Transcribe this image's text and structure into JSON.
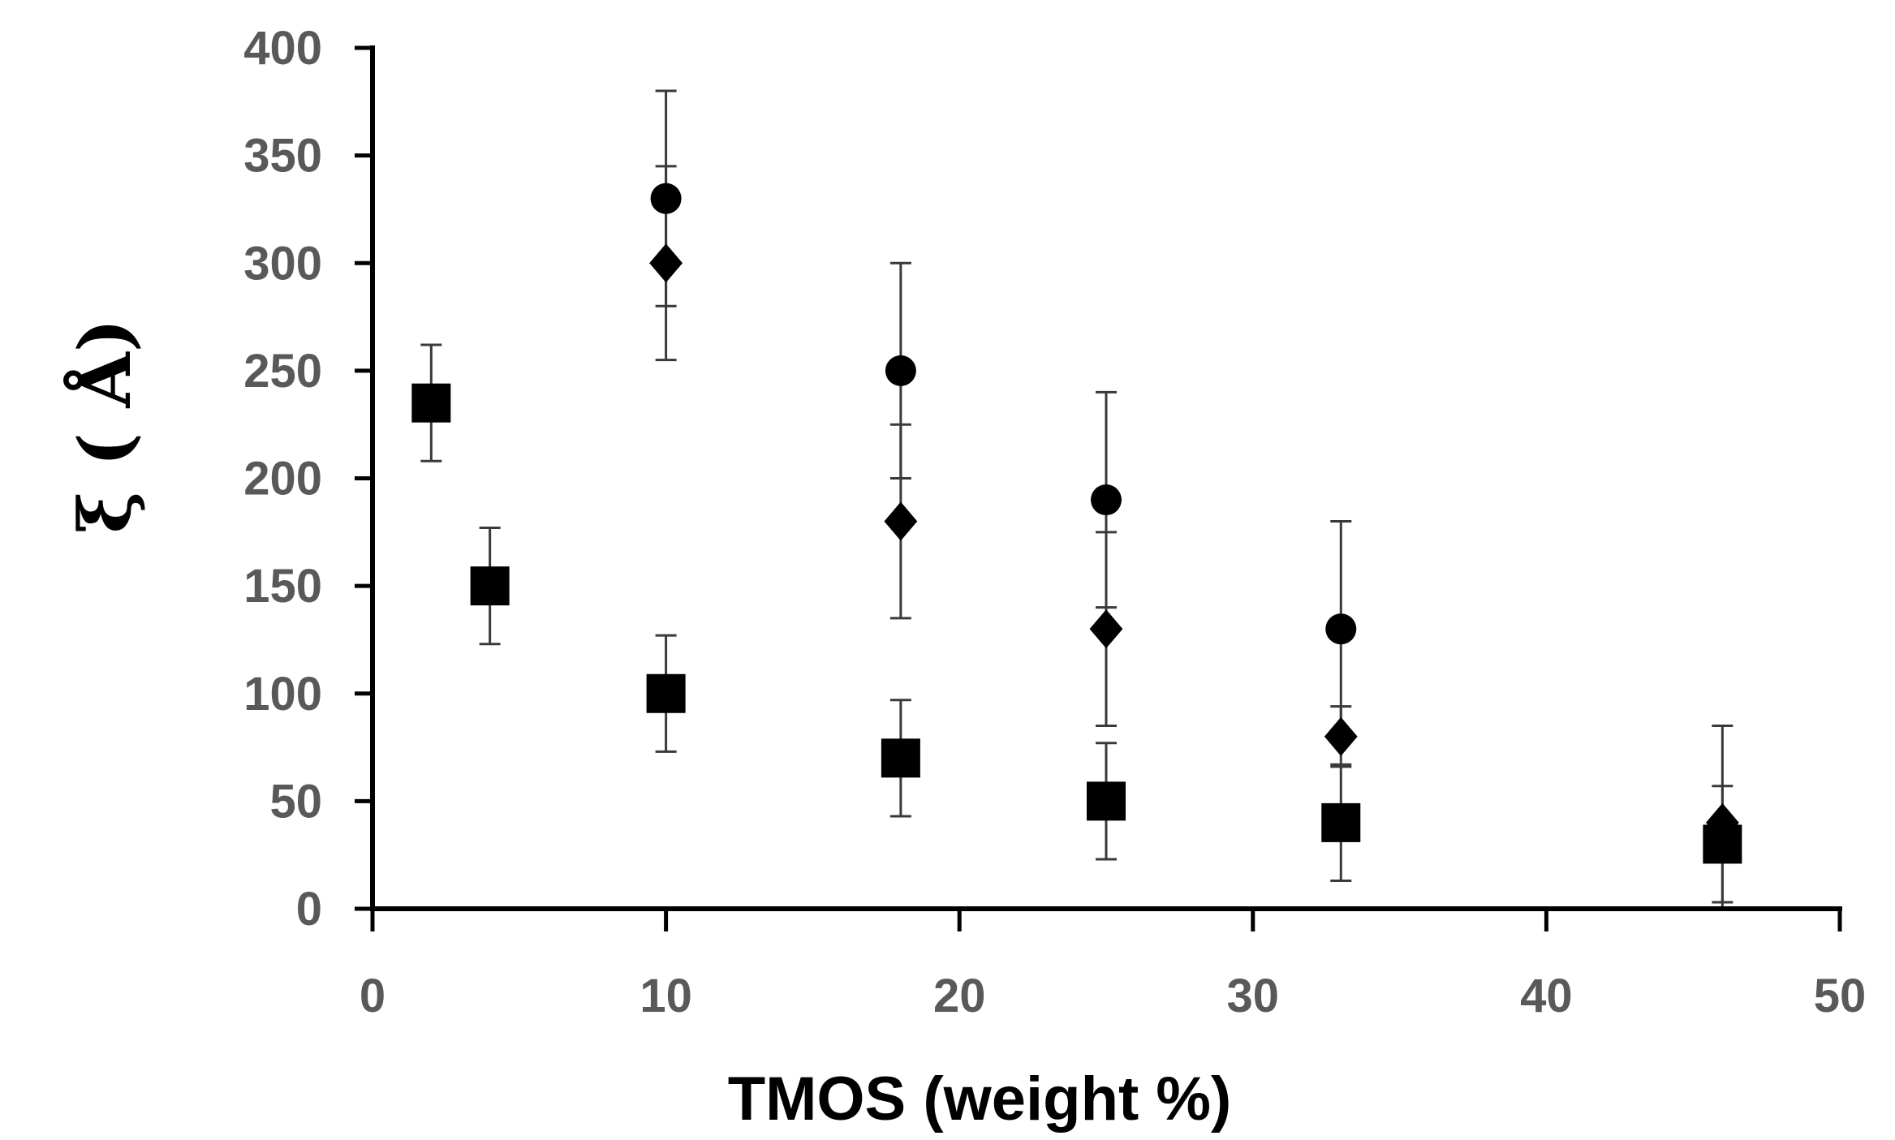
{
  "chart_data": {
    "type": "scatter",
    "title": "",
    "xlabel": "TMOS (weight %)",
    "ylabel": "ξ ( Å)",
    "xlim": [
      0,
      50
    ],
    "ylim": [
      0,
      400
    ],
    "xticks": [
      0,
      10,
      20,
      30,
      40,
      50
    ],
    "yticks": [
      0,
      50,
      100,
      150,
      200,
      250,
      300,
      350,
      400
    ],
    "xtick_labels": [
      "0",
      "10",
      "20",
      "30",
      "40",
      "50"
    ],
    "ytick_labels": [
      "0",
      "50",
      "100",
      "150",
      "200",
      "250",
      "300",
      "350",
      "400"
    ],
    "grid": false,
    "legend": "none",
    "series": [
      {
        "name": "circles",
        "marker": "circle",
        "color": "#000000",
        "points": [
          {
            "x": 10,
            "y": 330,
            "err": 50
          },
          {
            "x": 18,
            "y": 250,
            "err": 50
          },
          {
            "x": 25,
            "y": 190,
            "err": 50
          },
          {
            "x": 33,
            "y": 130,
            "err": 50
          }
        ]
      },
      {
        "name": "diamonds",
        "marker": "diamond",
        "color": "#000000",
        "points": [
          {
            "x": 10,
            "y": 300,
            "err": 45
          },
          {
            "x": 18,
            "y": 180,
            "err": 45
          },
          {
            "x": 25,
            "y": 130,
            "err": 45
          },
          {
            "x": 33,
            "y": 80,
            "err": 14
          },
          {
            "x": 46,
            "y": 40,
            "err": 45
          }
        ]
      },
      {
        "name": "squares",
        "marker": "square",
        "color": "#000000",
        "points": [
          {
            "x": 2,
            "y": 235,
            "err": 27
          },
          {
            "x": 4,
            "y": 150,
            "err": 27
          },
          {
            "x": 10,
            "y": 100,
            "err": 27
          },
          {
            "x": 18,
            "y": 70,
            "err": 27
          },
          {
            "x": 25,
            "y": 50,
            "err": 27
          },
          {
            "x": 33,
            "y": 40,
            "err": 27
          },
          {
            "x": 46,
            "y": 30,
            "err": 27
          }
        ]
      }
    ]
  }
}
